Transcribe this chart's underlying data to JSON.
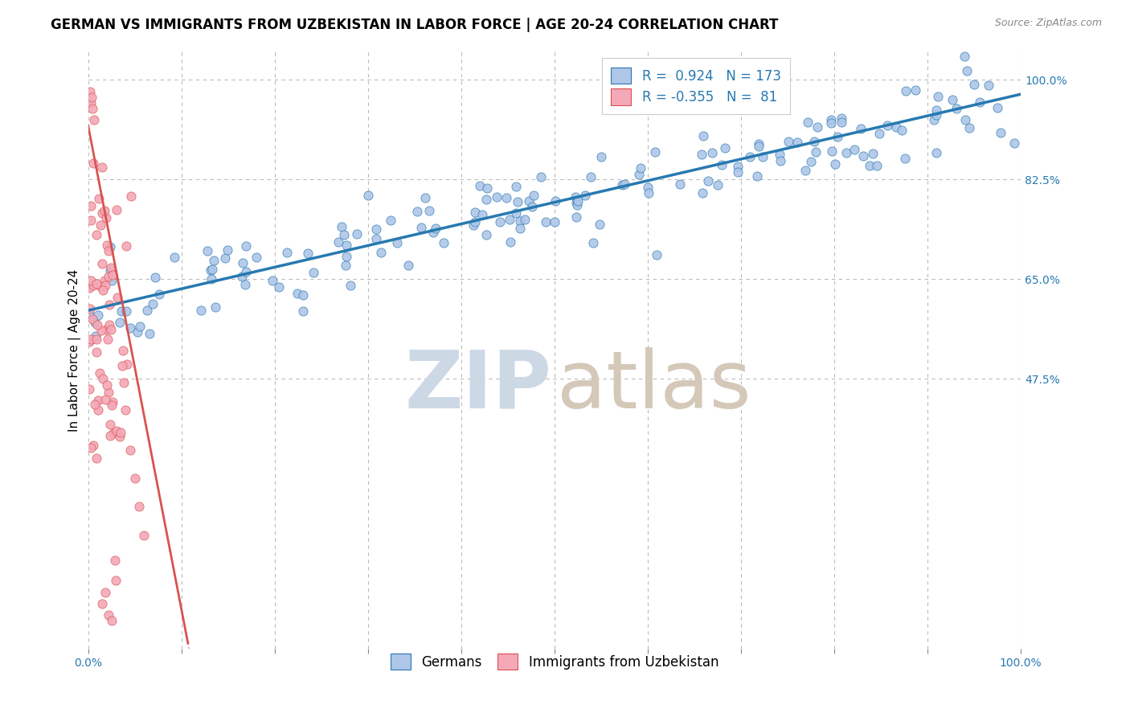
{
  "title": "GERMAN VS IMMIGRANTS FROM UZBEKISTAN IN LABOR FORCE | AGE 20-24 CORRELATION CHART",
  "source": "Source: ZipAtlas.com",
  "ylabel": "In Labor Force | Age 20-24",
  "xlim": [
    0.0,
    1.0
  ],
  "ylim": [
    0.0,
    1.05
  ],
  "ytick_positions": [
    0.475,
    0.65,
    0.825,
    1.0
  ],
  "ytick_labels": [
    "47.5%",
    "65.0%",
    "82.5%",
    "100.0%"
  ],
  "blue_R": 0.924,
  "blue_N": 173,
  "pink_R": -0.355,
  "pink_N": 81,
  "blue_color": "#aec6e8",
  "pink_color": "#f4a8b8",
  "blue_line_color": "#2779b0",
  "pink_line_color": "#d9534f",
  "grid_color": "#bbbbbb",
  "watermark_color_zip": "#cdd8e5",
  "watermark_color_atlas": "#d4c8b8",
  "legend_label_blue": "Germans",
  "legend_label_pink": "Immigrants from Uzbekistan",
  "title_fontsize": 12,
  "axis_label_fontsize": 11,
  "tick_fontsize": 10,
  "legend_fontsize": 12,
  "blue_slope": 0.38,
  "blue_intercept": 0.595,
  "pink_slope": -8.5,
  "pink_intercept": 0.92
}
